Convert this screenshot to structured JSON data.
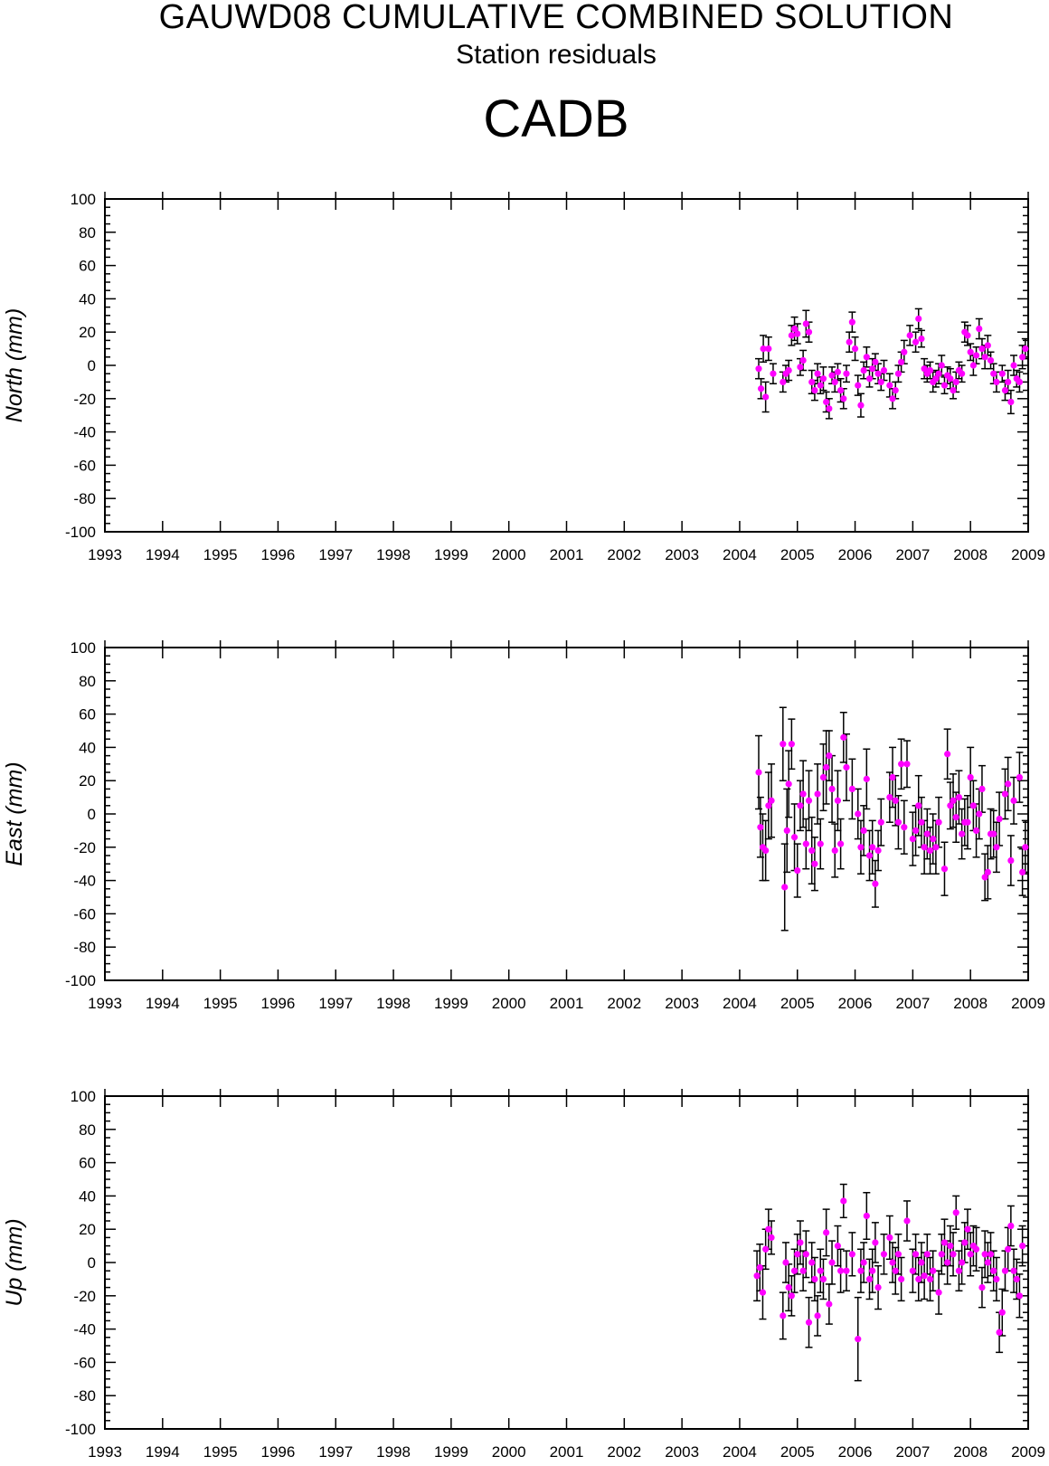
{
  "header": {
    "title": "GAUWD08 CUMULATIVE COMBINED SOLUTION",
    "subtitle": "Station residuals",
    "station": "CADB"
  },
  "colors": {
    "point": "#ff00ff",
    "errorbar": "#000000",
    "axis": "#000000"
  },
  "chart_data": [
    {
      "type": "scatter",
      "ylabel": "North (mm)",
      "xlim": [
        1993,
        2009
      ],
      "ylim": [
        -100,
        100
      ],
      "x_ticks": [
        "1993",
        "1994",
        "1995",
        "1996",
        "1997",
        "1998",
        "1999",
        "2000",
        "2001",
        "2002",
        "2003",
        "2004",
        "2005",
        "2006",
        "2007",
        "2008",
        "2009"
      ],
      "y_ticks": [
        "100",
        "80",
        "60",
        "40",
        "20",
        "0",
        "-20",
        "-40",
        "-60",
        "-80",
        "-100"
      ],
      "points": [
        [
          2004.33,
          -2,
          6
        ],
        [
          2004.37,
          -14,
          6
        ],
        [
          2004.41,
          10,
          8
        ],
        [
          2004.45,
          -19,
          9
        ],
        [
          2004.5,
          10,
          7
        ],
        [
          2004.58,
          -5,
          6
        ],
        [
          2004.75,
          -10,
          6
        ],
        [
          2004.8,
          -5,
          5
        ],
        [
          2004.85,
          -3,
          6
        ],
        [
          2004.9,
          18,
          6
        ],
        [
          2004.95,
          22,
          7
        ],
        [
          2005.0,
          19,
          6
        ],
        [
          2005.05,
          -1,
          5
        ],
        [
          2005.1,
          3,
          6
        ],
        [
          2005.15,
          25,
          8
        ],
        [
          2005.2,
          20,
          6
        ],
        [
          2005.25,
          -10,
          7
        ],
        [
          2005.3,
          -15,
          6
        ],
        [
          2005.35,
          -5,
          6
        ],
        [
          2005.4,
          -12,
          5
        ],
        [
          2005.45,
          -8,
          7
        ],
        [
          2005.5,
          -22,
          6
        ],
        [
          2005.55,
          -26,
          6
        ],
        [
          2005.6,
          -6,
          5
        ],
        [
          2005.65,
          -10,
          6
        ],
        [
          2005.7,
          -4,
          5
        ],
        [
          2005.75,
          -15,
          7
        ],
        [
          2005.8,
          -20,
          6
        ],
        [
          2005.85,
          -5,
          5
        ],
        [
          2005.9,
          14,
          6
        ],
        [
          2005.95,
          26,
          6
        ],
        [
          2006.0,
          10,
          7
        ],
        [
          2006.05,
          -12,
          6
        ],
        [
          2006.1,
          -24,
          7
        ],
        [
          2006.15,
          -3,
          5
        ],
        [
          2006.2,
          5,
          6
        ],
        [
          2006.25,
          -8,
          5
        ],
        [
          2006.3,
          -2,
          6
        ],
        [
          2006.35,
          2,
          5
        ],
        [
          2006.4,
          -5,
          6
        ],
        [
          2006.45,
          -10,
          5
        ],
        [
          2006.5,
          -3,
          6
        ],
        [
          2006.6,
          -12,
          7
        ],
        [
          2006.65,
          -20,
          6
        ],
        [
          2006.7,
          -15,
          5
        ],
        [
          2006.75,
          -5,
          5
        ],
        [
          2006.8,
          2,
          6
        ],
        [
          2006.85,
          8,
          7
        ],
        [
          2006.95,
          18,
          6
        ],
        [
          2007.05,
          14,
          6
        ],
        [
          2007.1,
          28,
          6
        ],
        [
          2007.15,
          16,
          5
        ],
        [
          2007.2,
          -2,
          6
        ],
        [
          2007.25,
          -5,
          5
        ],
        [
          2007.3,
          -3,
          5
        ],
        [
          2007.35,
          -10,
          6
        ],
        [
          2007.4,
          -8,
          5
        ],
        [
          2007.45,
          -5,
          6
        ],
        [
          2007.5,
          0,
          6
        ],
        [
          2007.55,
          -12,
          5
        ],
        [
          2007.6,
          -6,
          5
        ],
        [
          2007.65,
          -8,
          6
        ],
        [
          2007.7,
          -15,
          5
        ],
        [
          2007.75,
          -10,
          6
        ],
        [
          2007.8,
          -3,
          5
        ],
        [
          2007.85,
          -5,
          5
        ],
        [
          2007.9,
          20,
          6
        ],
        [
          2007.95,
          18,
          6
        ],
        [
          2008.0,
          8,
          5
        ],
        [
          2008.05,
          0,
          6
        ],
        [
          2008.1,
          6,
          5
        ],
        [
          2008.15,
          22,
          6
        ],
        [
          2008.2,
          10,
          6
        ],
        [
          2008.25,
          5,
          7
        ],
        [
          2008.3,
          12,
          6
        ],
        [
          2008.35,
          3,
          5
        ],
        [
          2008.4,
          -5,
          6
        ],
        [
          2008.45,
          -10,
          6
        ],
        [
          2008.55,
          -5,
          5
        ],
        [
          2008.6,
          -15,
          6
        ],
        [
          2008.65,
          -10,
          7
        ],
        [
          2008.7,
          -22,
          7
        ],
        [
          2008.75,
          0,
          6
        ],
        [
          2008.8,
          -8,
          5
        ],
        [
          2008.85,
          -10,
          6
        ],
        [
          2008.9,
          5,
          7
        ],
        [
          2008.95,
          10,
          6
        ]
      ]
    },
    {
      "type": "scatter",
      "ylabel": "East (mm)",
      "xlim": [
        1993,
        2009
      ],
      "ylim": [
        -100,
        100
      ],
      "x_ticks": [
        "1993",
        "1994",
        "1995",
        "1996",
        "1997",
        "1998",
        "1999",
        "2000",
        "2001",
        "2002",
        "2003",
        "2004",
        "2005",
        "2006",
        "2007",
        "2008",
        "2009"
      ],
      "y_ticks": [
        "100",
        "80",
        "60",
        "40",
        "20",
        "0",
        "-20",
        "-40",
        "-60",
        "-80",
        "-100"
      ],
      "points": [
        [
          2004.33,
          25,
          22
        ],
        [
          2004.36,
          -8,
          18
        ],
        [
          2004.4,
          -20,
          20
        ],
        [
          2004.45,
          -22,
          18
        ],
        [
          2004.5,
          5,
          20
        ],
        [
          2004.55,
          8,
          22
        ],
        [
          2004.75,
          42,
          22
        ],
        [
          2004.78,
          -44,
          26
        ],
        [
          2004.82,
          -10,
          25
        ],
        [
          2004.85,
          18,
          20
        ],
        [
          2004.9,
          42,
          15
        ],
        [
          2004.95,
          -14,
          20
        ],
        [
          2005.0,
          -34,
          16
        ],
        [
          2005.05,
          5,
          15
        ],
        [
          2005.1,
          12,
          20
        ],
        [
          2005.15,
          -18,
          15
        ],
        [
          2005.2,
          8,
          18
        ],
        [
          2005.25,
          -22,
          20
        ],
        [
          2005.3,
          -30,
          16
        ],
        [
          2005.35,
          12,
          18
        ],
        [
          2005.4,
          -18,
          15
        ],
        [
          2005.45,
          22,
          20
        ],
        [
          2005.5,
          28,
          22
        ],
        [
          2005.55,
          35,
          15
        ],
        [
          2005.6,
          15,
          20
        ],
        [
          2005.65,
          -22,
          16
        ],
        [
          2005.7,
          8,
          18
        ],
        [
          2005.75,
          -18,
          15
        ],
        [
          2005.8,
          46,
          15
        ],
        [
          2005.85,
          28,
          20
        ],
        [
          2005.95,
          15,
          18
        ],
        [
          2006.05,
          0,
          15
        ],
        [
          2006.1,
          -20,
          16
        ],
        [
          2006.15,
          -10,
          15
        ],
        [
          2006.2,
          21,
          18
        ],
        [
          2006.25,
          -25,
          15
        ],
        [
          2006.3,
          -20,
          16
        ],
        [
          2006.35,
          -42,
          14
        ],
        [
          2006.4,
          -22,
          12
        ],
        [
          2006.45,
          -5,
          14
        ],
        [
          2006.6,
          10,
          15
        ],
        [
          2006.65,
          22,
          18
        ],
        [
          2006.7,
          8,
          15
        ],
        [
          2006.75,
          -5,
          16
        ],
        [
          2006.8,
          30,
          15
        ],
        [
          2006.85,
          -8,
          16
        ],
        [
          2006.9,
          30,
          14
        ],
        [
          2007.0,
          -15,
          16
        ],
        [
          2007.05,
          -10,
          15
        ],
        [
          2007.1,
          5,
          18
        ],
        [
          2007.15,
          -5,
          15
        ],
        [
          2007.2,
          -20,
          16
        ],
        [
          2007.25,
          -12,
          15
        ],
        [
          2007.3,
          -22,
          14
        ],
        [
          2007.35,
          -15,
          15
        ],
        [
          2007.4,
          -20,
          16
        ],
        [
          2007.45,
          -5,
          15
        ],
        [
          2007.55,
          -33,
          16
        ],
        [
          2007.6,
          36,
          15
        ],
        [
          2007.65,
          5,
          14
        ],
        [
          2007.7,
          8,
          16
        ],
        [
          2007.75,
          -2,
          15
        ],
        [
          2007.8,
          10,
          16
        ],
        [
          2007.85,
          -12,
          15
        ],
        [
          2007.9,
          -5,
          14
        ],
        [
          2007.95,
          -5,
          16
        ],
        [
          2008.0,
          22,
          18
        ],
        [
          2008.05,
          5,
          15
        ],
        [
          2008.1,
          -10,
          16
        ],
        [
          2008.15,
          0,
          15
        ],
        [
          2008.2,
          15,
          14
        ],
        [
          2008.25,
          -38,
          14
        ],
        [
          2008.3,
          -35,
          16
        ],
        [
          2008.35,
          -12,
          15
        ],
        [
          2008.4,
          -12,
          14
        ],
        [
          2008.45,
          -20,
          15
        ],
        [
          2008.5,
          -3,
          16
        ],
        [
          2008.6,
          12,
          15
        ],
        [
          2008.65,
          18,
          16
        ],
        [
          2008.7,
          -28,
          15
        ],
        [
          2008.75,
          8,
          14
        ],
        [
          2008.85,
          22,
          15
        ],
        [
          2008.9,
          -35,
          14
        ],
        [
          2008.95,
          -20,
          16
        ]
      ]
    },
    {
      "type": "scatter",
      "ylabel": "Up (mm)",
      "xlim": [
        1993,
        2009
      ],
      "ylim": [
        -100,
        100
      ],
      "x_ticks": [
        "1993",
        "1994",
        "1995",
        "1996",
        "1997",
        "1998",
        "1999",
        "2000",
        "2001",
        "2002",
        "2003",
        "2004",
        "2005",
        "2006",
        "2007",
        "2008",
        "2009"
      ],
      "y_ticks": [
        "100",
        "80",
        "60",
        "40",
        "20",
        "0",
        "-20",
        "-40",
        "-60",
        "-80",
        "-100"
      ],
      "points": [
        [
          2004.3,
          -8,
          15
        ],
        [
          2004.35,
          -3,
          14
        ],
        [
          2004.4,
          -18,
          16
        ],
        [
          2004.45,
          8,
          12
        ],
        [
          2004.5,
          20,
          12
        ],
        [
          2004.55,
          15,
          10
        ],
        [
          2004.75,
          -32,
          14
        ],
        [
          2004.8,
          0,
          12
        ],
        [
          2004.85,
          -15,
          14
        ],
        [
          2004.9,
          -20,
          12
        ],
        [
          2004.95,
          -5,
          13
        ],
        [
          2005.0,
          5,
          12
        ],
        [
          2005.05,
          12,
          13
        ],
        [
          2005.1,
          -5,
          12
        ],
        [
          2005.15,
          5,
          14
        ],
        [
          2005.2,
          -36,
          15
        ],
        [
          2005.25,
          0,
          12
        ],
        [
          2005.3,
          -10,
          13
        ],
        [
          2005.35,
          -32,
          12
        ],
        [
          2005.4,
          -5,
          13
        ],
        [
          2005.45,
          -10,
          12
        ],
        [
          2005.5,
          18,
          14
        ],
        [
          2005.55,
          -25,
          12
        ],
        [
          2005.6,
          0,
          13
        ],
        [
          2005.7,
          10,
          12
        ],
        [
          2005.75,
          -5,
          13
        ],
        [
          2005.8,
          37,
          10
        ],
        [
          2005.85,
          -5,
          12
        ],
        [
          2005.95,
          5,
          13
        ],
        [
          2006.05,
          -46,
          25
        ],
        [
          2006.1,
          -5,
          13
        ],
        [
          2006.15,
          0,
          12
        ],
        [
          2006.2,
          28,
          14
        ],
        [
          2006.25,
          -10,
          12
        ],
        [
          2006.3,
          -5,
          13
        ],
        [
          2006.35,
          12,
          12
        ],
        [
          2006.4,
          -15,
          13
        ],
        [
          2006.5,
          5,
          12
        ],
        [
          2006.6,
          15,
          13
        ],
        [
          2006.65,
          0,
          12
        ],
        [
          2006.7,
          -5,
          14
        ],
        [
          2006.75,
          5,
          12
        ],
        [
          2006.8,
          -10,
          13
        ],
        [
          2006.9,
          25,
          12
        ],
        [
          2007.0,
          -5,
          13
        ],
        [
          2007.05,
          5,
          12
        ],
        [
          2007.1,
          -10,
          13
        ],
        [
          2007.15,
          0,
          12
        ],
        [
          2007.2,
          -8,
          14
        ],
        [
          2007.25,
          5,
          12
        ],
        [
          2007.3,
          -10,
          13
        ],
        [
          2007.35,
          -5,
          12
        ],
        [
          2007.45,
          -18,
          13
        ],
        [
          2007.5,
          5,
          12
        ],
        [
          2007.55,
          12,
          14
        ],
        [
          2007.6,
          0,
          13
        ],
        [
          2007.65,
          10,
          12
        ],
        [
          2007.7,
          5,
          13
        ],
        [
          2007.75,
          30,
          10
        ],
        [
          2007.8,
          -5,
          12
        ],
        [
          2007.85,
          0,
          13
        ],
        [
          2007.9,
          12,
          12
        ],
        [
          2007.95,
          20,
          12
        ],
        [
          2008.0,
          5,
          13
        ],
        [
          2008.05,
          10,
          12
        ],
        [
          2008.1,
          8,
          13
        ],
        [
          2008.2,
          -15,
          12
        ],
        [
          2008.25,
          5,
          14
        ],
        [
          2008.3,
          0,
          12
        ],
        [
          2008.35,
          5,
          13
        ],
        [
          2008.4,
          -5,
          12
        ],
        [
          2008.45,
          -10,
          13
        ],
        [
          2008.5,
          -42,
          12
        ],
        [
          2008.55,
          -30,
          14
        ],
        [
          2008.6,
          -5,
          12
        ],
        [
          2008.65,
          8,
          13
        ],
        [
          2008.7,
          22,
          12
        ],
        [
          2008.75,
          -5,
          13
        ],
        [
          2008.8,
          -10,
          12
        ],
        [
          2008.85,
          -20,
          13
        ],
        [
          2008.9,
          10,
          12
        ]
      ]
    }
  ]
}
